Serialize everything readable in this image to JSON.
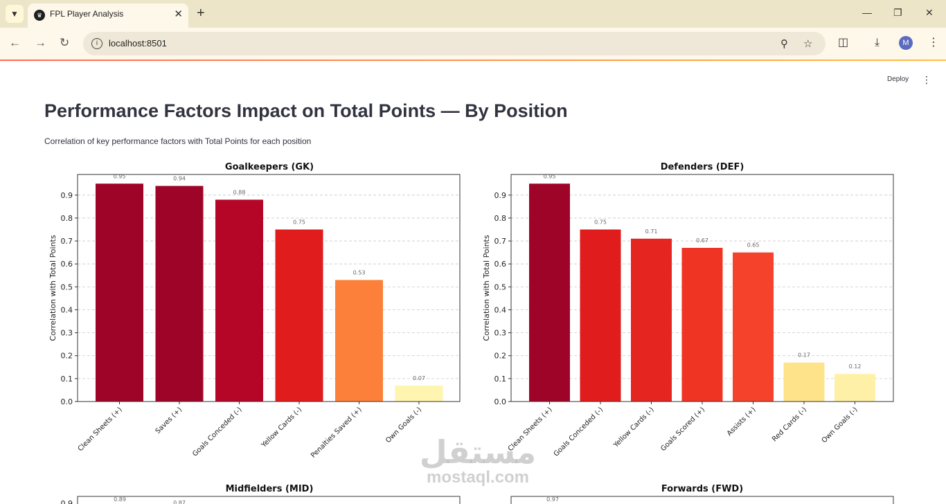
{
  "browser": {
    "tab_title": "FPL Player Analysis",
    "url": "localhost:8501",
    "profile_initial": "M"
  },
  "header": {
    "deploy_label": "Deploy"
  },
  "main": {
    "title": "Performance Factors Impact on Total Points — By Position",
    "subtitle": "Correlation of key performance factors with Total Points for each position"
  },
  "watermark": {
    "arabic": "مستقل",
    "latin": "mostaql.com"
  },
  "chart_data": [
    {
      "type": "bar",
      "title": "Goalkeepers (GK)",
      "ylabel": "Correlation with Total Points",
      "ylim": [
        0,
        0.99
      ],
      "grid": true,
      "categories": [
        "Clean Sheets (+)",
        "Saves (+)",
        "Goals Conceded (-)",
        "Yellow Cards (-)",
        "Penalties Saved (+)",
        "Own Goals (-)"
      ],
      "values": [
        0.95,
        0.94,
        0.88,
        0.75,
        0.53,
        0.07
      ],
      "labels": [
        "0.95",
        "0.94",
        "0.88",
        "0.75",
        "0.53",
        "0.07"
      ],
      "colors": [
        "#9e0427",
        "#9e0427",
        "#b50628",
        "#e01c1c",
        "#fc8039",
        "#fff4b0"
      ],
      "yticks": [
        "0.0",
        "0.1",
        "0.2",
        "0.3",
        "0.4",
        "0.5",
        "0.6",
        "0.7",
        "0.8",
        "0.9"
      ]
    },
    {
      "type": "bar",
      "title": "Defenders (DEF)",
      "ylabel": "Correlation with Total Points",
      "ylim": [
        0,
        0.99
      ],
      "grid": true,
      "categories": [
        "Clean Sheets (+)",
        "Goals Conceded (-)",
        "Yellow Cards (-)",
        "Goals Scored (+)",
        "Assists (+)",
        "Red Cards (-)",
        "Own Goals (-)"
      ],
      "values": [
        0.95,
        0.75,
        0.71,
        0.67,
        0.65,
        0.17,
        0.12
      ],
      "labels": [
        "0.95",
        "0.75",
        "0.71",
        "0.67",
        "0.65",
        "0.17",
        "0.12"
      ],
      "colors": [
        "#9e0427",
        "#e01c1c",
        "#e42520",
        "#ef3424",
        "#f4432a",
        "#fee38a",
        "#fff0a8"
      ],
      "yticks": [
        "0.0",
        "0.1",
        "0.2",
        "0.3",
        "0.4",
        "0.5",
        "0.6",
        "0.7",
        "0.8",
        "0.9"
      ]
    },
    {
      "type": "bar",
      "title": "Midfielders (MID)",
      "partial": true,
      "yticks": [
        "0.9"
      ],
      "labels": [
        "0.89",
        "0.87"
      ]
    },
    {
      "type": "bar",
      "title": "Forwards (FWD)",
      "partial": true,
      "labels": [
        "0.97"
      ]
    }
  ]
}
